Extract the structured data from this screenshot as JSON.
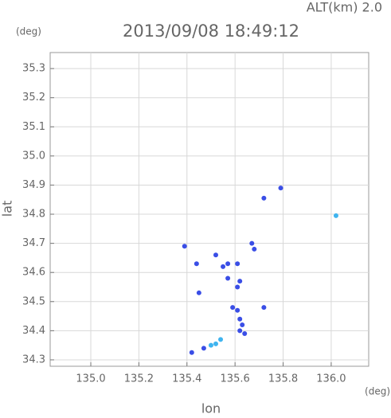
{
  "chart_data": {
    "type": "scatter",
    "title": "2013/09/08 18:49:12",
    "annotation": "ALT(km) 2.0",
    "y_unit": "(deg)",
    "x_unit": "(deg)",
    "xlabel": "lon",
    "ylabel": "lat",
    "xlim": [
      134.831,
      136.156
    ],
    "ylim": [
      34.278,
      35.355
    ],
    "xticks": [
      {
        "value": 135,
        "label": "135.0"
      },
      135.2,
      135.4,
      135.6,
      135.8,
      {
        "value": 136,
        "label": "136.0"
      }
    ],
    "yticks": [
      34.3,
      34.4,
      34.5,
      34.6,
      34.7,
      34.8,
      34.9,
      {
        "value": 35,
        "label": "35.0"
      },
      35.1,
      35.2,
      35.3
    ],
    "grid": true,
    "series": [
      {
        "color": "#3a4ee6",
        "x": [
          135.79,
          135.72,
          135.39,
          135.67,
          135.68,
          135.44,
          135.52,
          135.55,
          135.57,
          135.61,
          135.57,
          135.62,
          135.45,
          135.61,
          135.59,
          135.61,
          135.62,
          135.63,
          135.62,
          135.64,
          135.72,
          135.47,
          135.42
        ],
        "y": [
          34.89,
          34.855,
          34.69,
          34.7,
          34.68,
          34.63,
          34.66,
          34.62,
          34.63,
          34.63,
          34.58,
          34.57,
          34.53,
          34.55,
          34.48,
          34.47,
          34.44,
          34.42,
          34.4,
          34.39,
          34.48,
          34.34,
          34.325
        ]
      },
      {
        "color": "#3fb4ef",
        "x": [
          136.02,
          135.54,
          135.5,
          135.52
        ],
        "y": [
          34.795,
          34.37,
          34.35,
          34.355
        ]
      }
    ]
  }
}
